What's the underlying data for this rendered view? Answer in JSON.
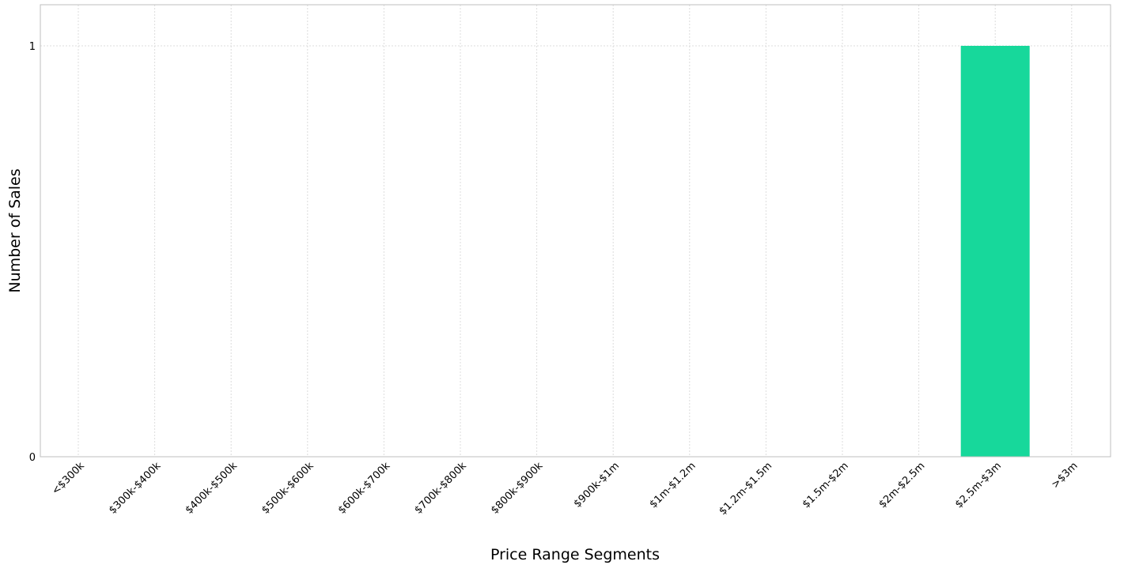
{
  "chart_data": {
    "type": "bar",
    "title": "",
    "xlabel": "Price Range Segments",
    "ylabel": "Number of Sales",
    "categories": [
      "<$300k",
      "$300k-$400k",
      "$400k-$500k",
      "$500k-$600k",
      "$600k-$700k",
      "$700k-$800k",
      "$800k-$900k",
      "$900k-$1m",
      "$1m-$1.2m",
      "$1.2m-$1.5m",
      "$1.5m-$2m",
      "$2m-$2.5m",
      "$2.5m-$3m",
      ">$3m"
    ],
    "values": [
      0,
      0,
      0,
      0,
      0,
      0,
      0,
      0,
      0,
      0,
      0,
      0,
      1,
      0
    ],
    "yticks": [
      0,
      1
    ],
    "ylim": [
      0,
      1.1
    ],
    "grid": true,
    "legend": "none",
    "bar_color": "#17d89b"
  }
}
